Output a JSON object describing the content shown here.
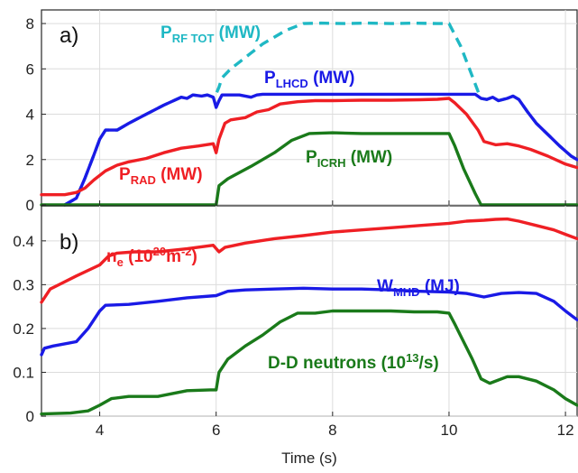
{
  "chart_data": [
    {
      "panel_label": "a)",
      "type": "line",
      "xlim": [
        3,
        12.2
      ],
      "ylim": [
        0,
        8.6
      ],
      "yticks": [
        0,
        2,
        4,
        6,
        8
      ],
      "grid": true,
      "series": [
        {
          "name": "P_RF TOT (MW)",
          "color": "#1fb8c4",
          "dashed": true,
          "x": [
            3.4,
            3.6,
            3.75,
            3.9,
            4.0,
            4.1,
            4.3,
            4.5,
            4.8,
            5.1,
            5.4,
            5.5,
            5.6,
            5.75,
            5.85,
            5.95,
            6.0,
            6.05,
            6.1,
            6.25,
            6.4,
            6.6,
            6.8,
            7.0,
            7.2,
            7.5,
            7.8,
            8.2,
            8.6,
            9.0,
            9.4,
            9.8,
            10.0,
            10.2,
            10.35,
            10.5,
            10.55,
            10.65,
            10.75,
            10.85,
            11.0,
            11.1,
            11.2,
            11.35,
            11.5,
            11.7,
            11.9,
            12.1,
            12.2
          ],
          "y": [
            0.0,
            0.3,
            1.2,
            2.2,
            2.9,
            3.3,
            3.3,
            3.6,
            4.0,
            4.4,
            4.75,
            4.7,
            4.85,
            4.8,
            4.85,
            4.75,
            4.9,
            5.2,
            5.6,
            6.0,
            6.3,
            6.7,
            7.1,
            7.4,
            7.7,
            8.0,
            8.02,
            8.0,
            8.02,
            8.0,
            8.02,
            8.0,
            8.0,
            7.0,
            6.0,
            5.0,
            4.7,
            4.65,
            4.75,
            4.6,
            4.7,
            4.8,
            4.65,
            4.1,
            3.6,
            3.1,
            2.6,
            2.15,
            2.0
          ]
        },
        {
          "name": "P_LHCD (MW)",
          "color": "#1a1ae6",
          "dashed": false,
          "x": [
            3.4,
            3.6,
            3.75,
            3.9,
            4.0,
            4.1,
            4.3,
            4.5,
            4.8,
            5.1,
            5.4,
            5.5,
            5.6,
            5.75,
            5.85,
            5.95,
            6.0,
            6.05,
            6.1,
            6.4,
            6.6,
            6.7,
            6.8,
            7.0,
            7.5,
            8.0,
            8.5,
            9.0,
            9.5,
            10.0,
            10.3,
            10.45,
            10.55,
            10.65,
            10.75,
            10.85,
            11.0,
            11.1,
            11.2,
            11.35,
            11.5,
            11.7,
            11.9,
            12.1,
            12.2
          ],
          "y": [
            0.0,
            0.3,
            1.2,
            2.2,
            2.9,
            3.3,
            3.3,
            3.6,
            4.0,
            4.4,
            4.75,
            4.7,
            4.85,
            4.8,
            4.85,
            4.75,
            4.3,
            4.6,
            4.85,
            4.85,
            4.75,
            4.85,
            4.88,
            4.88,
            4.88,
            4.88,
            4.88,
            4.88,
            4.88,
            4.88,
            4.88,
            4.88,
            4.7,
            4.65,
            4.75,
            4.6,
            4.7,
            4.8,
            4.65,
            4.1,
            3.6,
            3.1,
            2.6,
            2.15,
            2.0
          ]
        },
        {
          "name": "P_RAD (MW)",
          "color": "#ef1f24",
          "dashed": false,
          "x": [
            3.0,
            3.4,
            3.6,
            3.75,
            3.9,
            4.1,
            4.3,
            4.5,
            4.8,
            5.1,
            5.4,
            5.7,
            5.95,
            6.0,
            6.05,
            6.15,
            6.25,
            6.5,
            6.7,
            6.9,
            7.1,
            7.4,
            7.7,
            8.0,
            8.5,
            9.0,
            9.5,
            9.8,
            10.0,
            10.1,
            10.3,
            10.5,
            10.6,
            10.8,
            11.0,
            11.2,
            11.4,
            11.7,
            12.0,
            12.2
          ],
          "y": [
            0.45,
            0.45,
            0.55,
            0.75,
            1.1,
            1.5,
            1.75,
            1.9,
            2.05,
            2.3,
            2.5,
            2.6,
            2.7,
            2.3,
            2.9,
            3.6,
            3.75,
            3.85,
            4.1,
            4.2,
            4.45,
            4.55,
            4.6,
            4.6,
            4.62,
            4.62,
            4.64,
            4.66,
            4.7,
            4.5,
            4.0,
            3.3,
            2.8,
            2.65,
            2.7,
            2.6,
            2.45,
            2.15,
            1.8,
            1.65
          ]
        },
        {
          "name": "P_ICRH (MW)",
          "color": "#1a7a1a",
          "dashed": false,
          "x": [
            3.0,
            6.0,
            6.05,
            6.2,
            6.6,
            7.0,
            7.3,
            7.6,
            8.0,
            8.5,
            9.0,
            9.5,
            10.0,
            10.1,
            10.25,
            10.45,
            10.55,
            12.2
          ],
          "y": [
            0.0,
            0.0,
            0.85,
            1.15,
            1.7,
            2.3,
            2.85,
            3.15,
            3.18,
            3.15,
            3.15,
            3.15,
            3.15,
            2.6,
            1.6,
            0.5,
            0.0,
            0.0
          ]
        }
      ],
      "annotations": [
        {
          "main": "P",
          "sub": "RF TOT",
          "tail": " (MW)",
          "color": "#1fb8c4"
        },
        {
          "main": "P",
          "sub": "LHCD",
          "tail": " (MW)",
          "color": "#1a1ae6"
        },
        {
          "main": "P",
          "sub": "RAD",
          "tail": " (MW)",
          "color": "#ef1f24"
        },
        {
          "main": "P",
          "sub": "ICRH",
          "tail": " (MW)",
          "color": "#1a7a1a"
        }
      ]
    },
    {
      "panel_label": "b)",
      "type": "line",
      "xlim": [
        3,
        12.2
      ],
      "ylim": [
        0,
        0.48
      ],
      "yticks": [
        0,
        0.1,
        0.2,
        0.3,
        0.4
      ],
      "ytick_labels": [
        "0",
        "0.1",
        "0.2",
        "0.3",
        "0.4"
      ],
      "xticks": [
        4,
        6,
        8,
        10,
        12
      ],
      "xlabel": "Time (s)",
      "grid": true,
      "series": [
        {
          "name": "n_e (10^20 m^-2)",
          "color": "#ef1f24",
          "x": [
            3.0,
            3.15,
            3.3,
            3.6,
            4.0,
            4.15,
            4.3,
            4.6,
            5.0,
            5.5,
            5.95,
            6.05,
            6.15,
            6.5,
            7.0,
            7.5,
            8.0,
            8.5,
            9.0,
            9.5,
            10.0,
            10.3,
            10.6,
            10.8,
            11.0,
            11.2,
            11.5,
            11.8,
            12.0,
            12.2
          ],
          "y": [
            0.26,
            0.29,
            0.3,
            0.32,
            0.345,
            0.365,
            0.372,
            0.375,
            0.375,
            0.382,
            0.39,
            0.375,
            0.385,
            0.395,
            0.405,
            0.412,
            0.42,
            0.425,
            0.43,
            0.435,
            0.44,
            0.445,
            0.447,
            0.449,
            0.45,
            0.445,
            0.435,
            0.425,
            0.415,
            0.405
          ]
        },
        {
          "name": "W_MHD (MJ)",
          "color": "#1a1ae6",
          "x": [
            3.0,
            3.05,
            3.2,
            3.6,
            3.8,
            4.0,
            4.1,
            4.5,
            5.0,
            5.5,
            6.0,
            6.2,
            6.5,
            7.0,
            7.5,
            8.0,
            8.5,
            9.0,
            9.5,
            10.0,
            10.3,
            10.6,
            10.9,
            11.2,
            11.5,
            11.8,
            12.0,
            12.2
          ],
          "y": [
            0.14,
            0.155,
            0.16,
            0.17,
            0.2,
            0.24,
            0.253,
            0.255,
            0.262,
            0.27,
            0.275,
            0.285,
            0.288,
            0.29,
            0.292,
            0.29,
            0.29,
            0.288,
            0.285,
            0.283,
            0.28,
            0.272,
            0.28,
            0.282,
            0.28,
            0.262,
            0.24,
            0.22
          ]
        },
        {
          "name": "D-D neutrons (10^13/s)",
          "color": "#1a7a1a",
          "x": [
            3.0,
            3.5,
            3.8,
            4.0,
            4.2,
            4.5,
            5.0,
            5.5,
            5.9,
            6.0,
            6.05,
            6.2,
            6.5,
            6.8,
            7.1,
            7.4,
            7.7,
            8.0,
            8.3,
            8.6,
            9.0,
            9.4,
            9.8,
            10.0,
            10.1,
            10.25,
            10.4,
            10.55,
            10.7,
            11.0,
            11.2,
            11.5,
            11.8,
            12.0,
            12.2
          ],
          "y": [
            0.005,
            0.007,
            0.012,
            0.025,
            0.04,
            0.045,
            0.045,
            0.058,
            0.06,
            0.06,
            0.1,
            0.13,
            0.16,
            0.185,
            0.215,
            0.235,
            0.235,
            0.24,
            0.24,
            0.24,
            0.24,
            0.238,
            0.238,
            0.235,
            0.21,
            0.17,
            0.13,
            0.085,
            0.075,
            0.09,
            0.09,
            0.08,
            0.06,
            0.04,
            0.025
          ]
        }
      ],
      "annotations": [
        {
          "main": "n",
          "sub": "e",
          "tail": " (10",
          "sup": "20",
          "tail2": "m",
          "sup2": "-2",
          "tail3": ")",
          "color": "#ef1f24"
        },
        {
          "main": "W",
          "sub": "MHD",
          "tail": " (MJ)",
          "color": "#1a1ae6"
        },
        {
          "main": "D-D neutrons (10",
          "sup": "13",
          "tail": "/s)",
          "color": "#1a7a1a"
        }
      ]
    }
  ]
}
